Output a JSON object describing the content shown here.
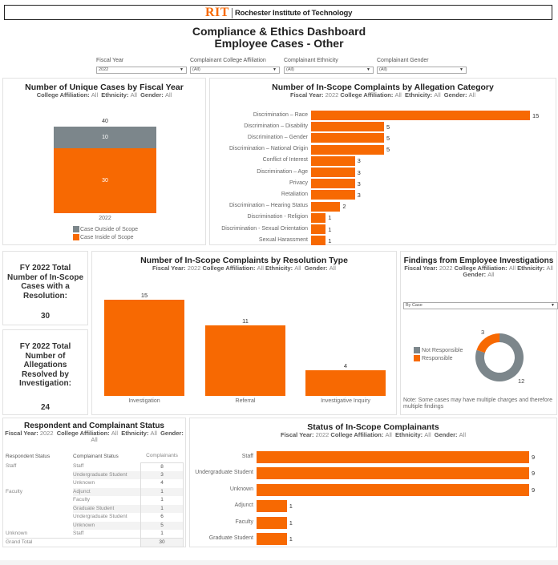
{
  "header": {
    "logo_mark": "RIT",
    "logo_text": "Rochester Institute of Technology",
    "title_line1": "Compliance & Ethics Dashboard",
    "title_line2": "Employee Cases - Other",
    "brand_color": "#f76902"
  },
  "filters": [
    {
      "label": "Fiscal Year",
      "value": "2022"
    },
    {
      "label": "Complainant College Affiliation",
      "value": "(All)"
    },
    {
      "label": "Complainant Ethnicity",
      "value": "(All)"
    },
    {
      "label": "Complainant Gender",
      "value": "(All)"
    }
  ],
  "filter_caption": {
    "fy_key": "Fiscal Year:",
    "fy_val": "2022",
    "ca_key": "College Affiliation:",
    "ca_val": "All",
    "eth_key": "Ethnicity:",
    "eth_val": "All",
    "gen_key": "Gender:",
    "gen_val": "All"
  },
  "kpis": {
    "resolution_label": "FY 2022 Total Number of In-Scope Cases with a Resolution:",
    "resolution_value": "30",
    "investigation_label": "FY 2022 Total Number of Allegations Resolved by Investigation:",
    "investigation_value": "24"
  },
  "findings": {
    "dropdown_value": "By Case",
    "note": "Note: Some cases may have multiple charges and therefore multiple findings"
  },
  "table": {
    "title": "Respondent and Complainant Status",
    "headers": [
      "Respondent Status",
      "Complainant Status",
      "Complainants"
    ],
    "rows": [
      {
        "respondent": "Staff",
        "complainant": "Staff",
        "count": "8"
      },
      {
        "respondent": "",
        "complainant": "Undergraduate Student",
        "count": "3"
      },
      {
        "respondent": "",
        "complainant": "Unknown",
        "count": "4"
      },
      {
        "respondent": "Faculty",
        "complainant": "Adjunct",
        "count": "1"
      },
      {
        "respondent": "",
        "complainant": "Faculty",
        "count": "1"
      },
      {
        "respondent": "",
        "complainant": "Graduate Student",
        "count": "1"
      },
      {
        "respondent": "",
        "complainant": "Undergraduate Student",
        "count": "6"
      },
      {
        "respondent": "",
        "complainant": "Unknown",
        "count": "5"
      },
      {
        "respondent": "Unknown",
        "complainant": "Staff",
        "count": "1"
      }
    ],
    "grand_total_label": "Grand Total",
    "grand_total": "30"
  },
  "chart_data": [
    {
      "id": "unique_cases",
      "type": "bar",
      "stacked": true,
      "title": "Number of Unique Cases by Fiscal Year",
      "subtitle": "College Affiliation: All  Ethnicity: All  Gender: All",
      "categories": [
        "2022"
      ],
      "series": [
        {
          "name": "Case Inside of Scope",
          "values": [
            30
          ],
          "color": "#f76902"
        },
        {
          "name": "Case Outside of Scope",
          "values": [
            10
          ],
          "color": "#7c868b"
        }
      ],
      "totals": [
        40
      ],
      "legend": [
        "Case Outside of Scope",
        "Case Inside of Scope"
      ],
      "legend_position": "bottom"
    },
    {
      "id": "allegation_category",
      "type": "bar",
      "orientation": "horizontal",
      "title": "Number of In-Scope Complaints by Allegation Category",
      "categories": [
        "Discrimination – Race",
        "Discrimination – Disability",
        "Discrimination – Gender",
        "Discrimination – National Origin",
        "Conflict of Interest",
        "Discrimination – Age",
        "Privacy",
        "Retaliation",
        "Discrimination – Hearing Status",
        "Discrimination - Religion",
        "Discrimination - Sexual Orientation",
        "Sexual Harassment"
      ],
      "values": [
        15,
        5,
        5,
        5,
        3,
        3,
        3,
        3,
        2,
        1,
        1,
        1
      ],
      "xlim": [
        0,
        15
      ]
    },
    {
      "id": "resolution_type",
      "type": "bar",
      "title": "Number of In-Scope Complaints by Resolution Type",
      "categories": [
        "Investigation",
        "Referral",
        "Investigative Inquiry"
      ],
      "values": [
        15,
        11,
        4
      ],
      "ylim": [
        0,
        15
      ]
    },
    {
      "id": "findings",
      "type": "pie",
      "donut": true,
      "title": "Findings from Employee Investigations",
      "categories": [
        "Not Responsible",
        "Responsible"
      ],
      "values": [
        12,
        3
      ],
      "colors": [
        "#7c868b",
        "#f76902"
      ],
      "legend_position": "left"
    },
    {
      "id": "complainant_status",
      "type": "bar",
      "orientation": "horizontal",
      "title": "Status of In-Scope Complainants",
      "categories": [
        "Staff",
        "Undergraduate Student",
        "Unknown",
        "Adjunct",
        "Faculty",
        "Graduate Student"
      ],
      "values": [
        9,
        9,
        9,
        1,
        1,
        1
      ],
      "xlim": [
        0,
        9
      ]
    }
  ]
}
